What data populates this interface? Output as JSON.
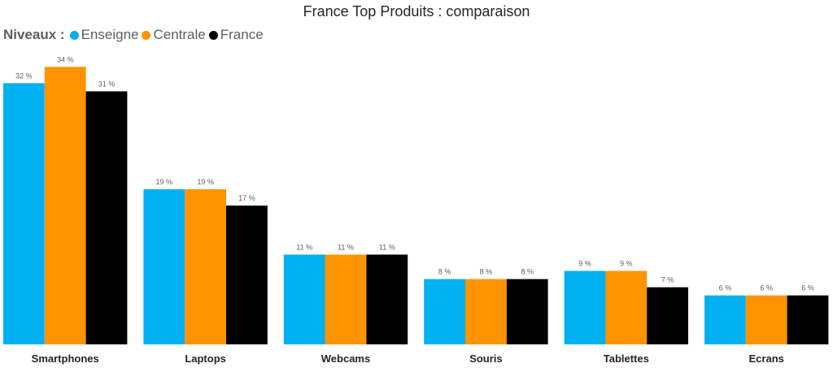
{
  "chart_data": {
    "type": "bar",
    "title": "France Top Produits : comparaison",
    "legend_title": "Niveaux :",
    "legend_position": "top-left",
    "categories": [
      "Smartphones",
      "Laptops",
      "Webcams",
      "Souris",
      "Tablettes",
      "Ecrans"
    ],
    "series": [
      {
        "name": "Enseigne",
        "color": "#00B0F0",
        "values": [
          32,
          19,
          11,
          8,
          9,
          6
        ],
        "labels": [
          "32 %",
          "19 %",
          "11 %",
          "8 %",
          "9 %",
          "6 %"
        ]
      },
      {
        "name": "Centrale",
        "color": "#FF9300",
        "values": [
          34,
          19,
          11,
          8,
          9,
          6
        ],
        "labels": [
          "34 %",
          "19 %",
          "11 %",
          "8 %",
          "9 %",
          "6 %"
        ]
      },
      {
        "name": "France",
        "color": "#000000",
        "values": [
          31,
          17,
          11,
          8,
          7,
          6
        ],
        "labels": [
          "31 %",
          "17 %",
          "11 %",
          "8 %",
          "7 %",
          "6 %"
        ]
      }
    ],
    "ylim": [
      0,
      35
    ],
    "grid": false,
    "xlabel": "",
    "ylabel": ""
  }
}
